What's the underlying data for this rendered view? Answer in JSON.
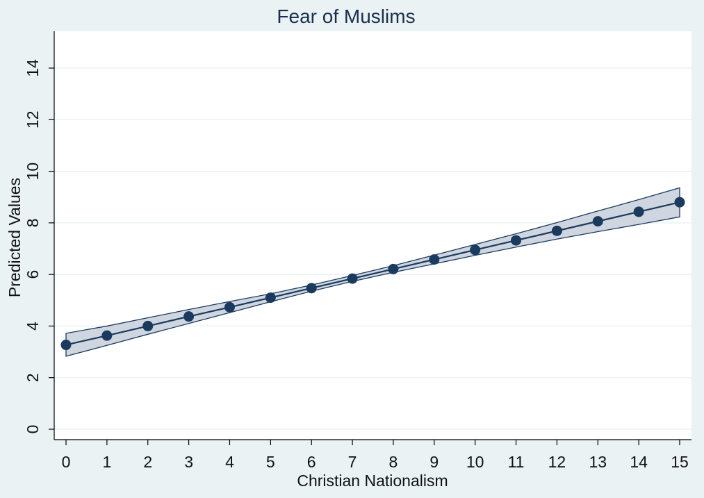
{
  "chart_data": {
    "type": "line",
    "title": "Fear of Muslims",
    "xlabel": "Christian Nationalism",
    "ylabel": "Predicted Values",
    "xlim": [
      0,
      15
    ],
    "ylim": [
      0,
      15
    ],
    "x_ticks": [
      0,
      1,
      2,
      3,
      4,
      5,
      6,
      7,
      8,
      9,
      10,
      11,
      12,
      13,
      14,
      15
    ],
    "y_ticks": [
      0,
      2,
      4,
      6,
      8,
      10,
      12,
      14
    ],
    "grid": true,
    "series": [
      {
        "x": [
          0,
          1,
          2,
          3,
          4,
          5,
          6,
          7,
          8,
          9,
          10,
          11,
          12,
          13,
          14,
          15
        ],
        "y": [
          3.27,
          3.63,
          4.0,
          4.37,
          4.73,
          5.1,
          5.47,
          5.84,
          6.21,
          6.58,
          6.95,
          7.32,
          7.69,
          8.06,
          8.43,
          8.8
        ],
        "ci_lower": [
          2.83,
          3.25,
          3.68,
          4.1,
          4.52,
          4.94,
          5.35,
          5.73,
          6.08,
          6.41,
          6.74,
          7.06,
          7.37,
          7.66,
          7.94,
          8.23
        ],
        "ci_upper": [
          3.72,
          4.0,
          4.32,
          4.64,
          4.95,
          5.25,
          5.59,
          5.96,
          6.34,
          6.75,
          7.16,
          7.58,
          8.01,
          8.46,
          8.9,
          9.36
        ]
      }
    ],
    "colors": {
      "line": "#1a3a5e",
      "marker": "#1a3a5e",
      "band_fill": "#cfd6e0",
      "band_stroke": "#1a3a5e",
      "plot_bg": "#ffffff",
      "outer_bg": "#eaf2f3"
    }
  }
}
